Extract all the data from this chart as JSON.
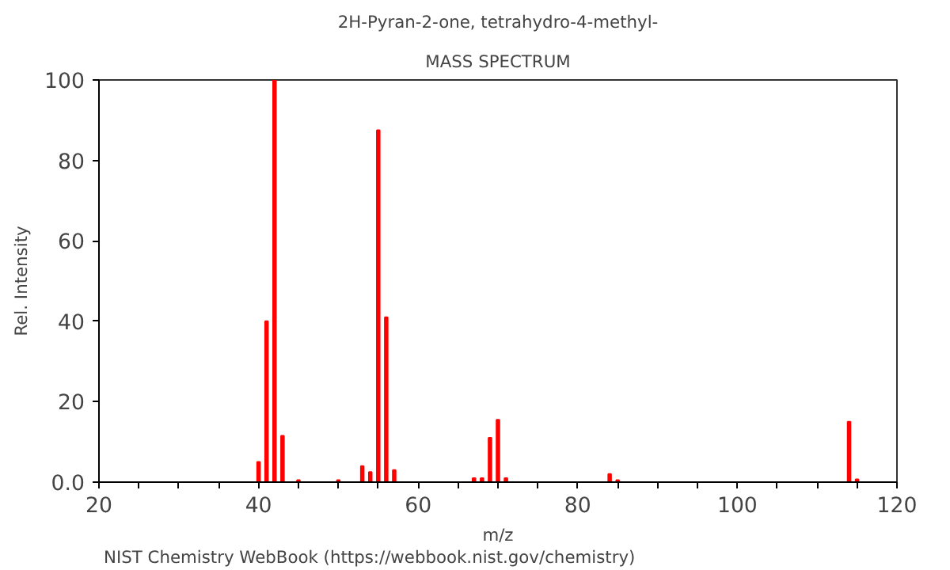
{
  "chart_data": {
    "type": "bar",
    "title": "2H-Pyran-2-one, tetrahydro-4-methyl-",
    "subtitle": "MASS SPECTRUM",
    "xlabel": "m/z",
    "ylabel": "Rel. Intensity",
    "annotations": [
      "NIST Chemistry WebBook (https://webbook.nist.gov/chemistry)"
    ],
    "x": [
      40,
      41,
      42,
      43,
      45,
      50,
      53,
      54,
      55,
      56,
      57,
      67,
      68,
      69,
      70,
      71,
      84,
      85,
      114,
      115
    ],
    "values": [
      5,
      40,
      100,
      11.5,
      0.5,
      0.5,
      4,
      2.5,
      87.5,
      41,
      3,
      1,
      1,
      11,
      15.5,
      1,
      2,
      0.5,
      15,
      0.7
    ],
    "color": "#ff0000",
    "xlim": [
      20,
      120
    ],
    "xticks": [
      20,
      {
        "value": 25,
        "label": null
      },
      40,
      {
        "value": 30,
        "label": null
      },
      {
        "value": 35,
        "label": null
      },
      {
        "value": 45,
        "label": null
      },
      {
        "value": 50,
        "label": null
      },
      {
        "value": 55,
        "label": null
      },
      60,
      {
        "value": 65,
        "label": null
      },
      {
        "value": 70,
        "label": null
      },
      {
        "value": 75,
        "label": null
      },
      80,
      {
        "value": 85,
        "label": null
      },
      {
        "value": 90,
        "label": null
      },
      {
        "value": 95,
        "label": null
      },
      100,
      {
        "value": 105,
        "label": null
      },
      {
        "value": 110,
        "label": null
      },
      {
        "value": 115,
        "label": null
      },
      120
    ],
    "ylim": [
      0,
      100
    ],
    "yticks": [
      {
        "value": 0,
        "label": "0.0"
      },
      20,
      40,
      60,
      80,
      100
    ],
    "grid": false
  }
}
